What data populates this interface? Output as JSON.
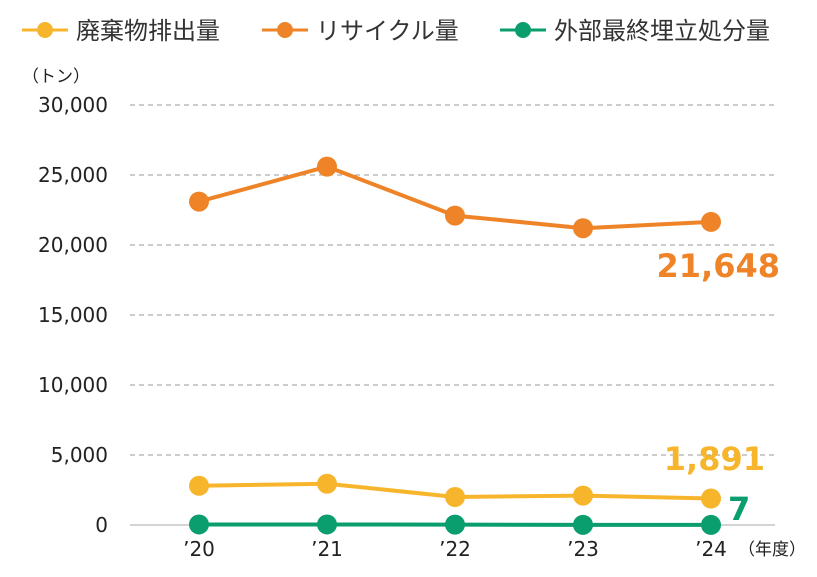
{
  "chart_data": {
    "type": "line",
    "unit_label": "（トン）",
    "xlabel": "（年度）",
    "categories": [
      "’20",
      "’21",
      "’22",
      "’23",
      "’24"
    ],
    "ylim": [
      0,
      30000
    ],
    "yticks": [
      0,
      5000,
      10000,
      15000,
      20000,
      25000,
      30000
    ],
    "ytick_labels": [
      "0",
      "5,000",
      "10,000",
      "15,000",
      "20,000",
      "25,000",
      "30,000"
    ],
    "grid": true,
    "legend_position": "top-left",
    "series": [
      {
        "name": "廃棄物排出量",
        "color": "#F7B52C",
        "values": [
          2800,
          2950,
          2000,
          2100,
          1891
        ],
        "end_label": "1,891"
      },
      {
        "name": "リサイクル量",
        "color": "#EE8427",
        "values": [
          23100,
          25600,
          22100,
          21200,
          21648
        ],
        "end_label": "21,648"
      },
      {
        "name": "外部最終埋立処分量",
        "color": "#0A9E6E",
        "values": [
          40,
          40,
          30,
          10,
          7
        ],
        "end_label": "7"
      }
    ]
  }
}
